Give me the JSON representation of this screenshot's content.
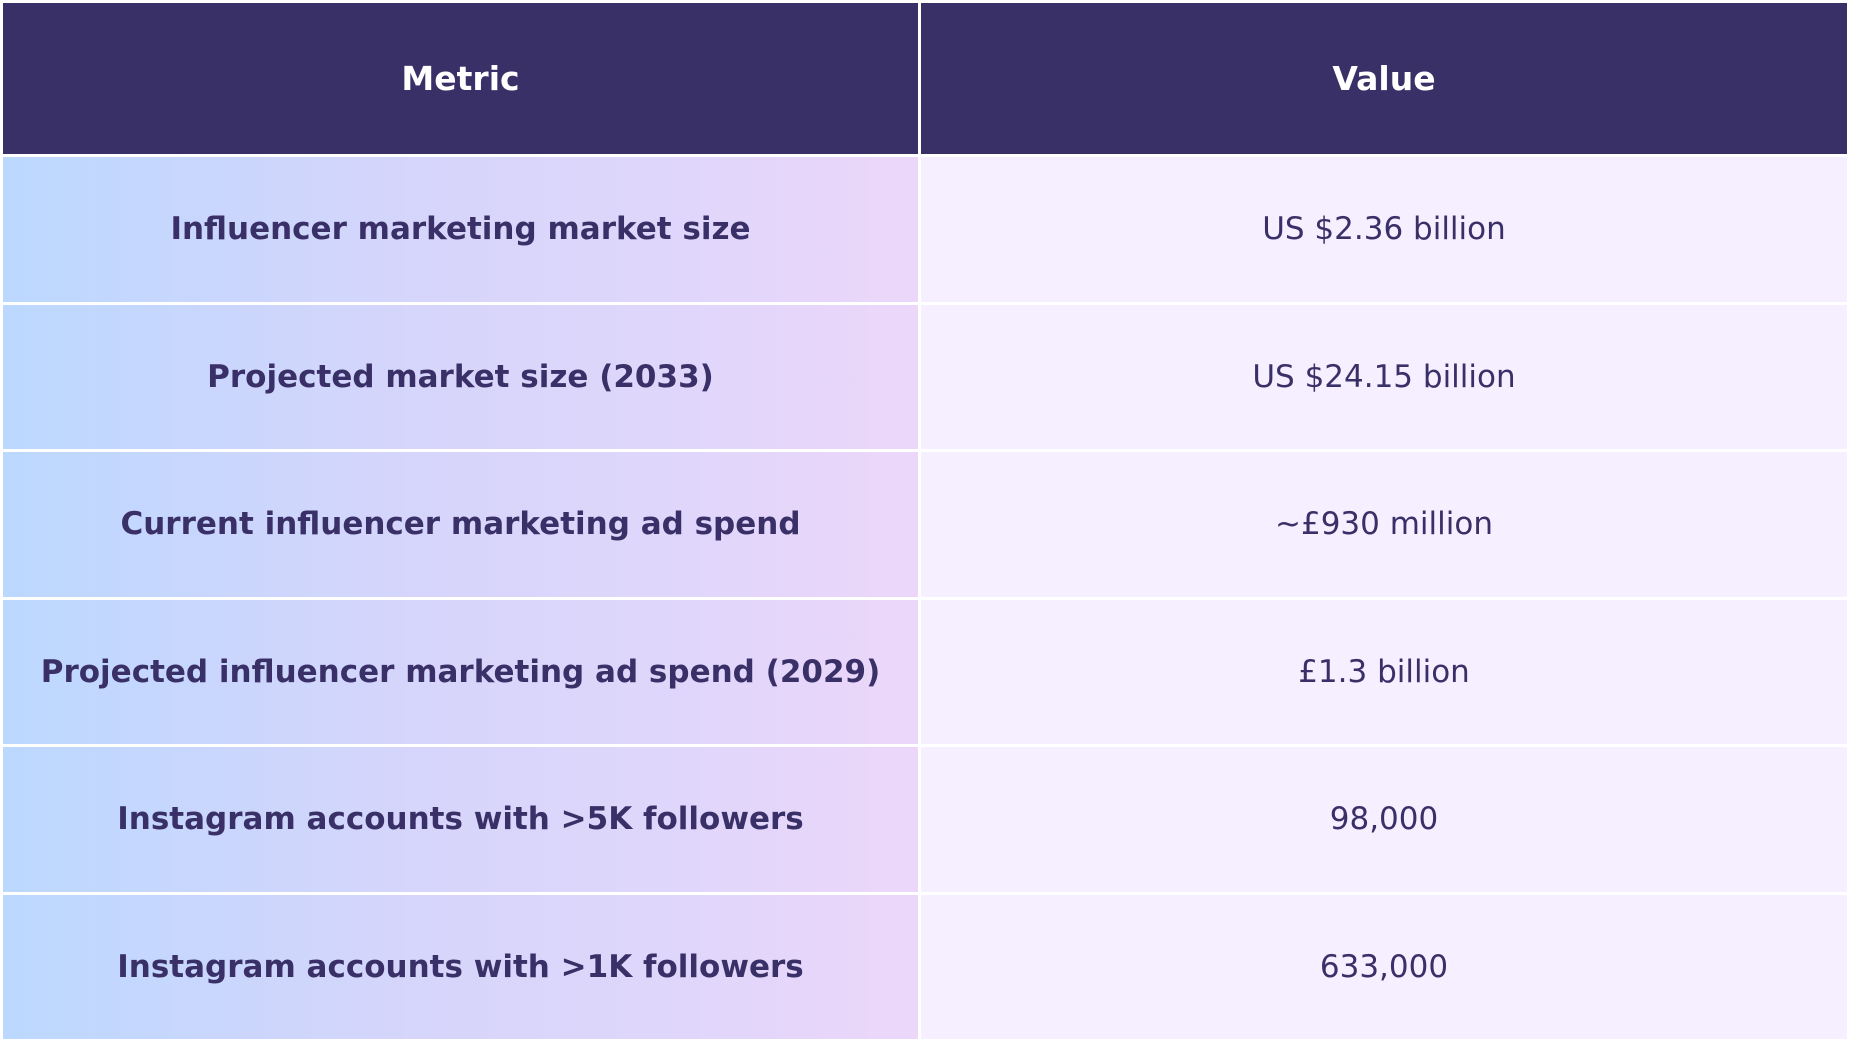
{
  "header": {
    "metric": "Metric",
    "value": "Value"
  },
  "rows": [
    {
      "metric": "Influencer marketing market size",
      "value": "US $2.36 billion"
    },
    {
      "metric": "Projected market size (2033)",
      "value": "US $24.15 billion"
    },
    {
      "metric": "Current influencer marketing ad spend",
      "value": "~£930 million"
    },
    {
      "metric": "Projected influencer marketing ad spend (2029)",
      "value": "£1.3 billion"
    },
    {
      "metric": "Instagram accounts with >5K followers",
      "value": "98,000"
    },
    {
      "metric": "Instagram accounts with >1K followers",
      "value": "633,000"
    }
  ],
  "colors": {
    "header_bg": "#3a3068",
    "text": "#3a3068",
    "value_bg": "#f6efff",
    "metric_gradient_start": "#bcd8ff",
    "metric_gradient_end": "#ecd7fa"
  }
}
